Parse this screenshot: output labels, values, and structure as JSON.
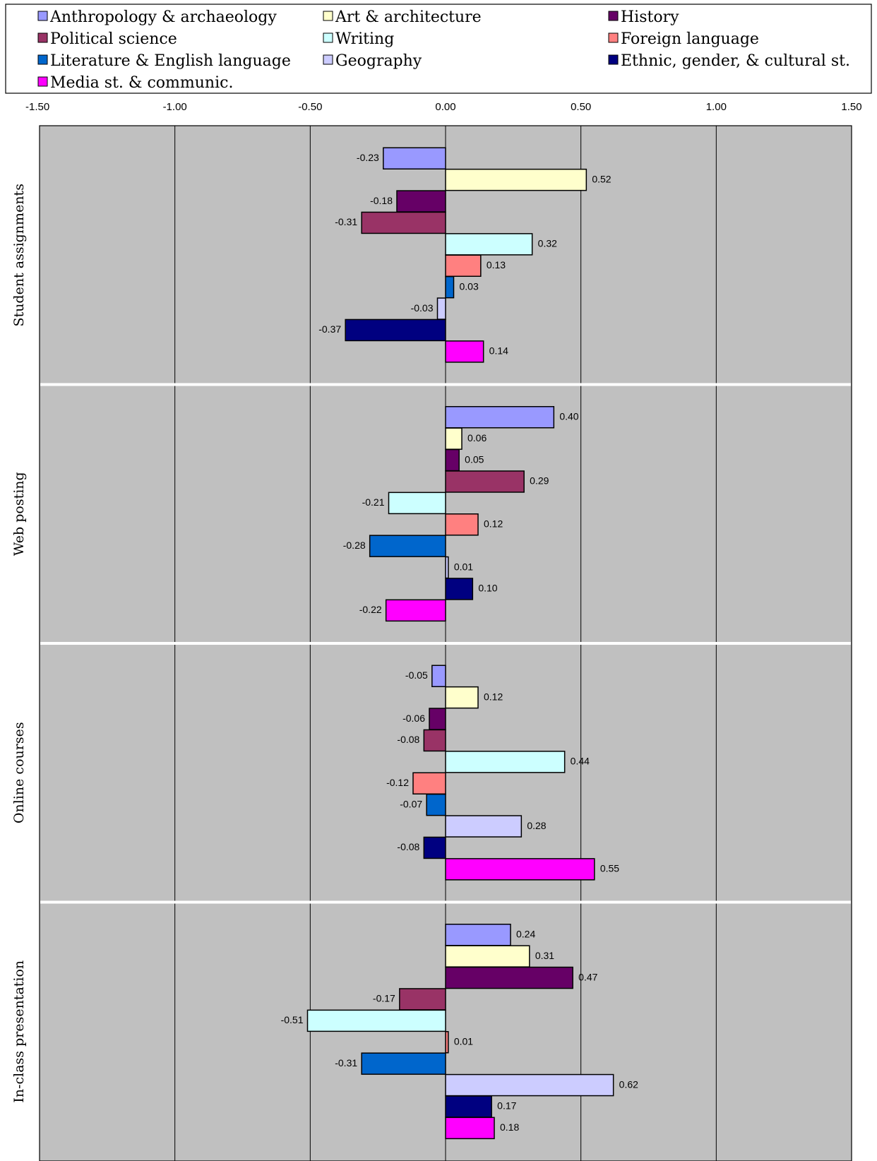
{
  "chart_data": {
    "type": "bar",
    "orientation": "horizontal",
    "xlim": [
      -1.5,
      1.5
    ],
    "x_ticks": [
      "-1.50",
      "-1.00",
      "-0.50",
      "0.00",
      "0.50",
      "1.00",
      "1.50"
    ],
    "x_tick_values": [
      -1.5,
      -1.0,
      -0.5,
      0.0,
      0.5,
      1.0,
      1.5
    ],
    "grid": true,
    "legend_position": "top",
    "plot_background": "#c0c0c0",
    "categories": [
      "Student assignments",
      "Web posting",
      "Online courses",
      "In-class presentation"
    ],
    "series": [
      {
        "name": "Anthropology & archaeology",
        "color": "#9999ff",
        "values": [
          -0.23,
          0.4,
          -0.05,
          0.24
        ],
        "labels": [
          "-0.23",
          "0.40",
          "-0.05",
          "0.24"
        ]
      },
      {
        "name": "Art & architecture",
        "color": "#ffffcc",
        "values": [
          0.52,
          0.06,
          0.12,
          0.31
        ],
        "labels": [
          "0.52",
          "0.06",
          "0.12",
          "0.31"
        ]
      },
      {
        "name": "History",
        "color": "#660066",
        "values": [
          -0.18,
          0.05,
          -0.06,
          0.47
        ],
        "labels": [
          "-0.18",
          "0.05",
          "-0.06",
          "0.47"
        ]
      },
      {
        "name": "Political science",
        "color": "#993366",
        "values": [
          -0.31,
          0.29,
          -0.08,
          -0.17
        ],
        "labels": [
          "-0.31",
          "0.29",
          "-0.08",
          "-0.17"
        ]
      },
      {
        "name": "Writing",
        "color": "#ccffff",
        "values": [
          0.32,
          -0.21,
          0.44,
          -0.51
        ],
        "labels": [
          "0.32",
          "-0.21",
          "0.44",
          "-0.51"
        ]
      },
      {
        "name": "Foreign language",
        "color": "#ff8080",
        "values": [
          0.13,
          0.12,
          -0.12,
          0.01
        ],
        "labels": [
          "0.13",
          "0.12",
          "-0.12",
          "0.01"
        ]
      },
      {
        "name": "Literature & English language",
        "color": "#0066cc",
        "values": [
          0.03,
          -0.28,
          -0.07,
          -0.31
        ],
        "labels": [
          "0.03",
          "-0.28",
          "-0.07",
          "-0.31"
        ]
      },
      {
        "name": "Geography",
        "color": "#ccccff",
        "values": [
          -0.03,
          0.01,
          0.28,
          0.62
        ],
        "labels": [
          "-0.03",
          "0.01",
          "0.28",
          "0.62"
        ]
      },
      {
        "name": "Ethnic, gender, & cultural st.",
        "color": "#000080",
        "values": [
          -0.37,
          0.1,
          -0.08,
          0.17
        ],
        "labels": [
          "-0.37",
          "0.10",
          "-0.08",
          "0.17"
        ]
      },
      {
        "name": "Media st. & communic.",
        "color": "#ff00ff",
        "values": [
          0.14,
          -0.22,
          0.55,
          0.18
        ],
        "labels": [
          "0.14",
          "-0.22",
          "0.55",
          "0.18"
        ]
      }
    ]
  }
}
